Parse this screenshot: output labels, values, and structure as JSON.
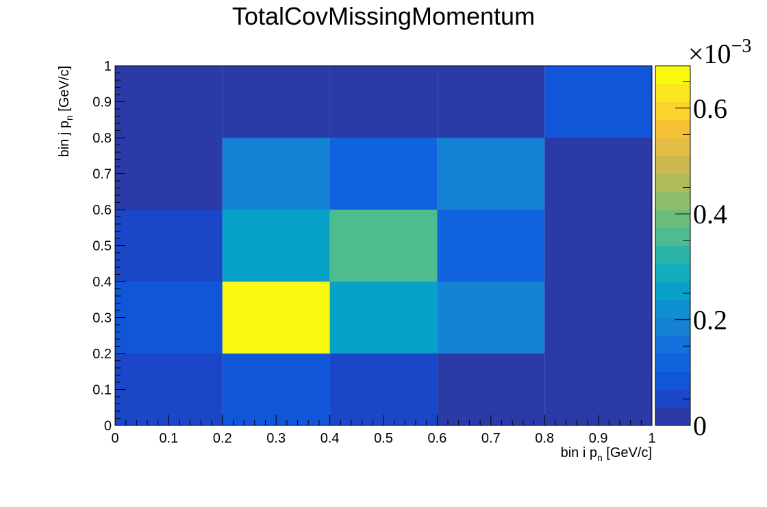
{
  "chart_data": {
    "type": "heatmap",
    "title": "TotalCovMissingMomentum",
    "xlabel": {
      "main": "bin i p",
      "sub": "n",
      "unit": " [GeV/c]"
    },
    "ylabel": {
      "main": "bin j p",
      "sub": "n",
      "unit": " [GeV/c]"
    },
    "xlim": [
      0,
      1
    ],
    "ylim": [
      0,
      1
    ],
    "x_edges": [
      0,
      0.2,
      0.4,
      0.6,
      0.8,
      1.0
    ],
    "y_edges": [
      0,
      0.2,
      0.4,
      0.6,
      0.8,
      1.0
    ],
    "x_tick_labels": [
      "0",
      "0.1",
      "0.2",
      "0.3",
      "0.4",
      "0.5",
      "0.6",
      "0.7",
      "0.8",
      "0.9",
      "1"
    ],
    "y_tick_labels": [
      "0",
      "0.1",
      "0.2",
      "0.3",
      "0.4",
      "0.5",
      "0.6",
      "0.7",
      "0.8",
      "0.9",
      "1"
    ],
    "values_rows_bottom_to_top": [
      [
        0.035,
        0.09,
        0.045,
        0.0,
        0.0
      ],
      [
        0.1,
        0.68,
        0.25,
        0.19,
        0.0
      ],
      [
        0.045,
        0.26,
        0.35,
        0.12,
        0.0
      ],
      [
        0.0,
        0.19,
        0.12,
        0.17,
        0.0
      ],
      [
        0.0,
        0.0,
        0.0,
        0.0,
        0.1
      ]
    ],
    "colorbar": {
      "min": 0,
      "max": 0.68,
      "exponent_label": "×10",
      "exponent_power": "−3",
      "tick_values": [
        0,
        0.2,
        0.4,
        0.6
      ],
      "tick_labels": [
        "0",
        "0.2",
        "0.4",
        "0.6"
      ]
    },
    "palette": [
      "#2a3aa7",
      "#1a46c7",
      "#1156d8",
      "#0f63dc",
      "#1370dc",
      "#1481d4",
      "#0e8fd2",
      "#08a1c9",
      "#13adc0",
      "#2cb5a6",
      "#4ebc8e",
      "#6cbc7c",
      "#8fbd6a",
      "#b0bb5a",
      "#cfb74f",
      "#e4bd43",
      "#f5c036",
      "#fad42a",
      "#fbe61e",
      "#f9f80f"
    ]
  }
}
